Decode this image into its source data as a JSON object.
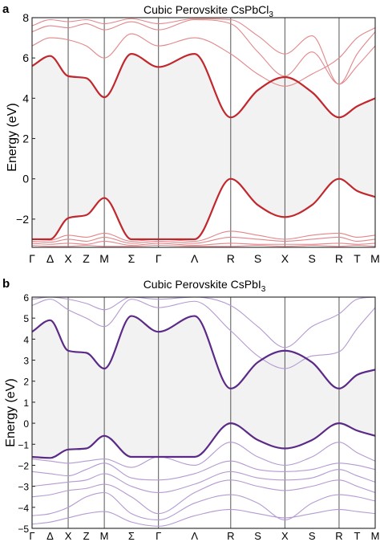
{
  "chart_data": [
    {
      "type": "line",
      "panel_label": "a",
      "title": "Cubic Perovskite CsPbCl",
      "title_subscript": "3",
      "ylabel": "Energy (eV)",
      "xlabel": "",
      "ylim": [
        -3.4,
        8
      ],
      "yticks": [
        "−2",
        "0",
        "2",
        "4",
        "6",
        "8"
      ],
      "ytick_values": [
        -2,
        0,
        2,
        4,
        6,
        8
      ],
      "kpoints": [
        "Γ",
        "Δ",
        "X",
        "Z",
        "M",
        "Σ",
        "Γ",
        "Λ",
        "R",
        "S",
        "X",
        "S",
        "R",
        "T",
        "M"
      ],
      "kpoint_positions": [
        0,
        0.5,
        1,
        1.5,
        2,
        2.75,
        3.5,
        4.5,
        5.5,
        6.25,
        7,
        7.75,
        8.5,
        9,
        9.5
      ],
      "vertical_lines_at": [
        1,
        2,
        3.5,
        5.5,
        7,
        8.5
      ],
      "colors": {
        "highlight": "#c0282e",
        "other": "#e2868a",
        "gap_fill": "#f2f2f2"
      },
      "gap_fill": {
        "between": [
          "Conduction band minimum",
          "Valence band maximum"
        ]
      },
      "series": [
        {
          "role": "Conduction band minimum",
          "highlight": true,
          "x": [
            0,
            0.5,
            1,
            1.5,
            2,
            2.75,
            3.5,
            4.5,
            5.5,
            6.25,
            7,
            7.75,
            8.5,
            9,
            9.5
          ],
          "values": [
            5.6,
            6.1,
            5.1,
            5.0,
            4.05,
            6.2,
            5.55,
            6.2,
            3.05,
            4.4,
            5.05,
            4.3,
            3.05,
            3.6,
            4.0
          ]
        },
        {
          "role": "Valence band maximum",
          "highlight": true,
          "x": [
            0,
            0.5,
            1,
            1.5,
            2,
            2.75,
            3.5,
            4.5,
            5.5,
            6.25,
            7,
            7.75,
            8.5,
            9,
            9.5
          ],
          "values": [
            -3.0,
            -3.0,
            -1.95,
            -1.8,
            -0.95,
            -3.0,
            -3.0,
            -3.0,
            0.0,
            -1.3,
            -1.9,
            -1.3,
            0.0,
            -0.6,
            -0.9
          ]
        },
        {
          "role": "upper band",
          "highlight": false,
          "x": [
            0,
            0.5,
            1,
            1.5,
            2,
            2.75,
            3.5,
            4.5,
            5.5,
            6.25,
            7,
            7.75,
            8.5,
            9,
            9.5
          ],
          "values": [
            6.6,
            7.0,
            6.9,
            6.6,
            6.0,
            7.2,
            6.6,
            7.0,
            6.2,
            5.2,
            4.6,
            5.2,
            6.0,
            7.0,
            7.5
          ]
        },
        {
          "role": "upper band",
          "highlight": false,
          "x": [
            0,
            0.5,
            1,
            1.5,
            2,
            2.75,
            3.5,
            4.5,
            5.5,
            6.25,
            7,
            7.75,
            8.5,
            9,
            9.5
          ],
          "values": [
            7.3,
            7.6,
            7.5,
            7.7,
            7.4,
            7.8,
            7.4,
            7.9,
            7.7,
            6.3,
            5.1,
            6.3,
            4.7,
            5.6,
            6.6
          ]
        },
        {
          "role": "upper band",
          "highlight": false,
          "x": [
            0,
            0.5,
            1,
            1.5,
            2,
            2.75,
            3.5,
            4.5,
            5.5,
            6.25,
            7,
            7.75,
            8.5,
            9,
            9.5
          ],
          "values": [
            7.6,
            7.9,
            7.8,
            7.9,
            7.7,
            7.95,
            7.7,
            7.95,
            7.9,
            7.1,
            6.2,
            7.1,
            4.7,
            6.2,
            7.3
          ]
        },
        {
          "role": "lower band",
          "highlight": false,
          "x": [
            0,
            0.5,
            1,
            1.5,
            2,
            2.75,
            3.5,
            4.5,
            5.5,
            6.25,
            7,
            7.75,
            8.5,
            9,
            9.5
          ],
          "values": [
            -3.0,
            -3.05,
            -2.8,
            -2.9,
            -2.7,
            -3.1,
            -3.0,
            -3.1,
            -2.6,
            -2.8,
            -3.0,
            -2.8,
            -2.7,
            -2.9,
            -2.8
          ]
        },
        {
          "role": "lower band",
          "highlight": false,
          "x": [
            0,
            0.5,
            1,
            1.5,
            2,
            2.75,
            3.5,
            4.5,
            5.5,
            6.25,
            7,
            7.75,
            8.5,
            9,
            9.5
          ],
          "values": [
            -3.1,
            -3.15,
            -3.0,
            -3.1,
            -2.9,
            -3.2,
            -3.1,
            -3.2,
            -2.9,
            -3.0,
            -3.1,
            -3.0,
            -2.9,
            -3.1,
            -3.0
          ]
        },
        {
          "role": "lower band",
          "highlight": false,
          "x": [
            0,
            0.5,
            1,
            1.5,
            2,
            2.75,
            3.5,
            4.5,
            5.5,
            6.25,
            7,
            7.75,
            8.5,
            9,
            9.5
          ],
          "values": [
            -3.2,
            -3.25,
            -3.2,
            -3.25,
            -3.1,
            -3.3,
            -3.2,
            -3.3,
            -3.2,
            -3.25,
            -3.25,
            -3.25,
            -3.2,
            -3.25,
            -3.2
          ]
        },
        {
          "role": "lower band",
          "highlight": false,
          "x": [
            0,
            0.5,
            1,
            1.5,
            2,
            2.75,
            3.5,
            4.5,
            5.5,
            6.25,
            7,
            7.75,
            8.5,
            9,
            9.5
          ],
          "values": [
            -3.3,
            -3.35,
            -3.35,
            -3.3,
            -3.35,
            -3.35,
            -3.3,
            -3.35,
            -3.35,
            -3.3,
            -3.35,
            -3.3,
            -3.35,
            -3.3,
            -3.35
          ]
        }
      ]
    },
    {
      "type": "line",
      "panel_label": "b",
      "title": "Cubic Perovskite CsPbI",
      "title_subscript": "3",
      "ylabel": "Energy (eV)",
      "xlabel": "",
      "ylim": [
        -5,
        6
      ],
      "yticks": [
        "−5",
        "−4",
        "−3",
        "−2",
        "−1",
        "0",
        "1",
        "2",
        "3",
        "4",
        "5",
        "6"
      ],
      "ytick_values": [
        -5,
        -4,
        -3,
        -2,
        -1,
        0,
        1,
        2,
        3,
        4,
        5,
        6
      ],
      "kpoints": [
        "Γ",
        "Δ",
        "X",
        "Z",
        "M",
        "Σ",
        "Γ",
        "Λ",
        "R",
        "S",
        "X",
        "S",
        "R",
        "T",
        "M"
      ],
      "kpoint_positions": [
        0,
        0.5,
        1,
        1.5,
        2,
        2.75,
        3.5,
        4.5,
        5.5,
        6.25,
        7,
        7.75,
        8.5,
        9,
        9.5
      ],
      "vertical_lines_at": [
        1,
        2,
        3.5,
        5.5,
        7,
        8.5
      ],
      "colors": {
        "highlight": "#5b2a86",
        "other": "#b49ad2",
        "gap_fill": "#f2f2f2"
      },
      "gap_fill": {
        "between": [
          "Conduction band minimum",
          "Valence band maximum"
        ]
      },
      "series": [
        {
          "role": "Conduction band minimum",
          "highlight": true,
          "x": [
            0,
            0.5,
            1,
            1.5,
            2,
            2.75,
            3.5,
            4.5,
            5.5,
            6.25,
            7,
            7.75,
            8.5,
            9,
            9.5
          ],
          "values": [
            4.35,
            4.9,
            3.45,
            3.35,
            2.6,
            5.1,
            4.35,
            5.1,
            1.65,
            2.9,
            3.45,
            2.9,
            1.65,
            2.3,
            2.55
          ]
        },
        {
          "role": "Valence band maximum",
          "highlight": true,
          "x": [
            0,
            0.5,
            1,
            1.5,
            2,
            2.75,
            3.5,
            4.5,
            5.5,
            6.25,
            7,
            7.75,
            8.5,
            9,
            9.5
          ],
          "values": [
            -1.6,
            -1.65,
            -1.25,
            -1.2,
            -0.6,
            -1.6,
            -1.6,
            -1.6,
            0.0,
            -0.8,
            -1.2,
            -0.8,
            0.0,
            -0.35,
            -0.6
          ]
        },
        {
          "role": "upper band",
          "highlight": false,
          "x": [
            0,
            0.5,
            1,
            1.5,
            2,
            2.75,
            3.5,
            4.5,
            5.5,
            6.25,
            7,
            7.75,
            8.5,
            9,
            9.5
          ],
          "values": [
            5.6,
            5.9,
            5.4,
            5.0,
            4.6,
            5.9,
            5.5,
            5.8,
            4.4,
            3.2,
            2.6,
            3.2,
            3.4,
            4.5,
            5.5
          ]
        },
        {
          "role": "upper band",
          "highlight": false,
          "x": [
            0,
            0.5,
            1,
            1.5,
            2,
            2.75,
            3.5,
            4.5,
            5.5,
            6.25,
            7,
            7.75,
            8.5,
            9,
            9.5
          ],
          "values": [
            5.9,
            6.0,
            5.9,
            5.7,
            5.4,
            6.0,
            5.9,
            6.0,
            5.6,
            4.6,
            3.6,
            4.6,
            5.2,
            5.9,
            6.0
          ]
        },
        {
          "role": "lower band",
          "highlight": false,
          "x": [
            0,
            0.5,
            1,
            1.5,
            2,
            2.75,
            3.5,
            4.5,
            5.5,
            6.25,
            7,
            7.75,
            8.5,
            9,
            9.5
          ],
          "values": [
            -1.7,
            -1.8,
            -1.9,
            -1.8,
            -1.7,
            -2.1,
            -1.6,
            -2.0,
            -0.9,
            -1.6,
            -2.0,
            -1.6,
            -0.9,
            -1.4,
            -1.8
          ]
        },
        {
          "role": "lower band",
          "highlight": false,
          "x": [
            0,
            0.5,
            1,
            1.5,
            2,
            2.75,
            3.5,
            4.5,
            5.5,
            6.25,
            7,
            7.75,
            8.5,
            9,
            9.5
          ],
          "values": [
            -2.3,
            -2.4,
            -2.5,
            -2.2,
            -1.9,
            -2.6,
            -2.7,
            -2.4,
            -1.8,
            -2.2,
            -2.3,
            -2.2,
            -1.9,
            -2.0,
            -2.2
          ]
        },
        {
          "role": "lower band",
          "highlight": false,
          "x": [
            0,
            0.5,
            1,
            1.5,
            2,
            2.75,
            3.5,
            4.5,
            5.5,
            6.25,
            7,
            7.75,
            8.5,
            9,
            9.5
          ],
          "values": [
            -3.0,
            -2.9,
            -2.8,
            -2.7,
            -2.4,
            -3.0,
            -3.3,
            -2.9,
            -2.3,
            -2.6,
            -2.7,
            -2.6,
            -2.2,
            -2.5,
            -2.8
          ]
        },
        {
          "role": "lower band",
          "highlight": false,
          "x": [
            0,
            0.5,
            1,
            1.5,
            2,
            2.75,
            3.5,
            4.5,
            5.5,
            6.25,
            7,
            7.75,
            8.5,
            9,
            9.5
          ],
          "values": [
            -3.5,
            -3.4,
            -3.2,
            -3.1,
            -2.9,
            -3.5,
            -4.3,
            -3.3,
            -2.7,
            -3.0,
            -3.2,
            -3.0,
            -2.7,
            -3.0,
            -3.3
          ]
        },
        {
          "role": "lower band",
          "highlight": false,
          "x": [
            0,
            0.5,
            1,
            1.5,
            2,
            2.75,
            3.5,
            4.5,
            5.5,
            6.25,
            7,
            7.75,
            8.5,
            9,
            9.5
          ],
          "values": [
            -4.4,
            -4.3,
            -4.0,
            -3.5,
            -3.3,
            -4.3,
            -4.6,
            -3.8,
            -3.4,
            -3.8,
            -4.6,
            -3.8,
            -3.4,
            -3.5,
            -3.7
          ]
        },
        {
          "role": "lower band",
          "highlight": false,
          "x": [
            0,
            0.5,
            1,
            1.5,
            2,
            2.75,
            3.5,
            4.5,
            5.5,
            6.25,
            7,
            7.75,
            8.5,
            9,
            9.5
          ],
          "values": [
            -4.8,
            -4.7,
            -4.5,
            -4.3,
            -4.2,
            -4.7,
            -4.9,
            -4.4,
            -4.1,
            -4.3,
            -4.5,
            -4.3,
            -4.1,
            -4.2,
            -4.3
          ]
        }
      ]
    }
  ]
}
